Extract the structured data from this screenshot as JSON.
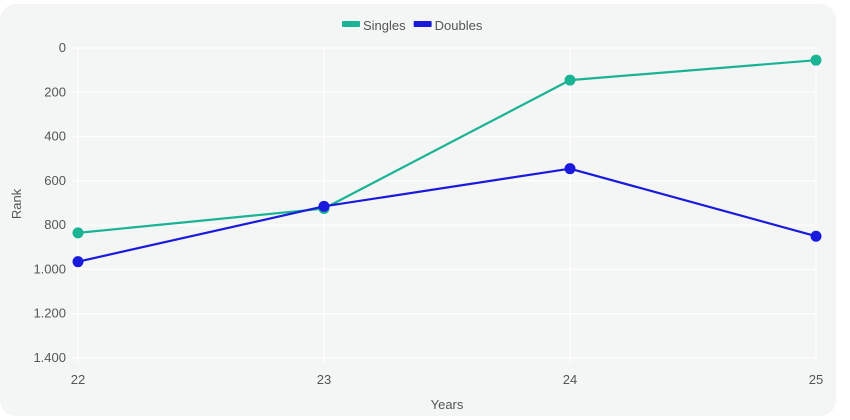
{
  "chart_data": {
    "type": "line",
    "x": [
      22,
      23,
      24,
      25
    ],
    "x_tick_labels": [
      "22",
      "23",
      "24",
      "25"
    ],
    "xlabel": "Years",
    "ylabel": "Rank",
    "ylim": [
      0,
      1400
    ],
    "y_inverted": true,
    "y_ticks": [
      0,
      200,
      400,
      600,
      800,
      1000,
      1200,
      1400
    ],
    "y_tick_labels": [
      "0",
      "200",
      "400",
      "600",
      "800",
      "1.000",
      "1.200",
      "1.400"
    ],
    "grid": true,
    "legend_position": "top-center",
    "series": [
      {
        "name": "Singles",
        "color": "#1ab394",
        "values": [
          835,
          725,
          145,
          55
        ]
      },
      {
        "name": "Doubles",
        "color": "#1a1adc",
        "values": [
          965,
          715,
          545,
          850
        ]
      }
    ]
  }
}
